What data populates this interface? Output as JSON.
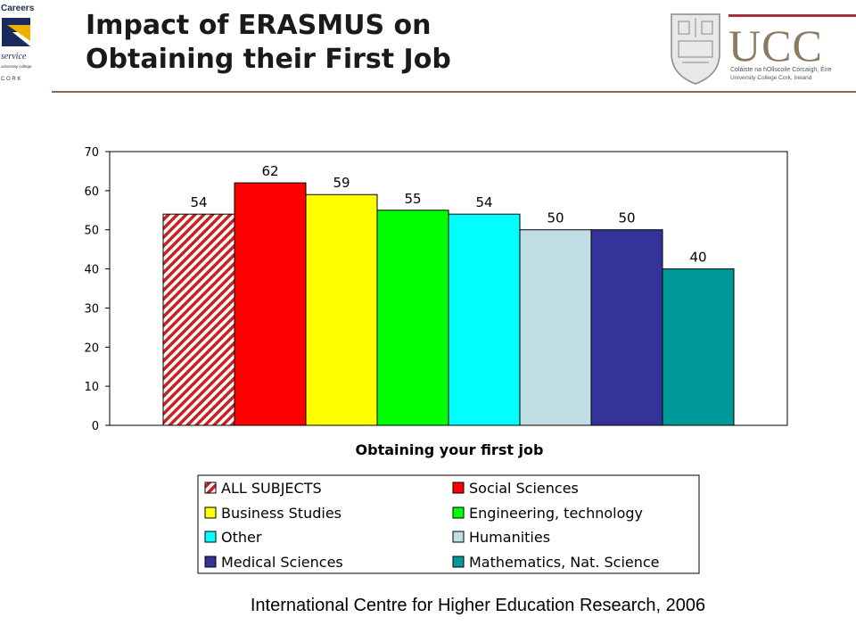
{
  "header": {
    "title_line1": "Impact of ERASMUS on",
    "title_line2": "Obtaining their First Job"
  },
  "logo_left": {
    "lines": [
      "Careers",
      "service",
      "university college",
      "C O R K"
    ]
  },
  "logo_right": {
    "wordmark": "UCC",
    "line1": "Coláiste na hOllscoile Corcaigh, Éire",
    "line2": "University College Cork, Ireland"
  },
  "chart_data": {
    "type": "bar",
    "xlabel": "Obtaining your first job",
    "ylabel": "",
    "ylim": [
      0,
      70
    ],
    "yticks": [
      0,
      10,
      20,
      30,
      40,
      50,
      60,
      70
    ],
    "grid": false,
    "legend_position": "bottom",
    "series": [
      {
        "name": "ALL SUBJECTS",
        "value": 54,
        "color": "#cc2020",
        "pattern": "diagonal-hatch"
      },
      {
        "name": "Social Sciences",
        "value": 62,
        "color": "#ff0000"
      },
      {
        "name": "Business Studies",
        "value": 59,
        "color": "#ffff00"
      },
      {
        "name": "Engineering, technology",
        "value": 55,
        "color": "#00ff00"
      },
      {
        "name": "Other",
        "value": 54,
        "color": "#00ffff"
      },
      {
        "name": "Humanities",
        "value": 50,
        "color": "#c0dee4"
      },
      {
        "name": "Medical Sciences",
        "value": 50,
        "color": "#333399"
      },
      {
        "name": "Mathematics, Nat. Science",
        "value": 40,
        "color": "#009999"
      }
    ]
  },
  "footer": {
    "source": "International Centre for Higher Education Research, 2006"
  }
}
